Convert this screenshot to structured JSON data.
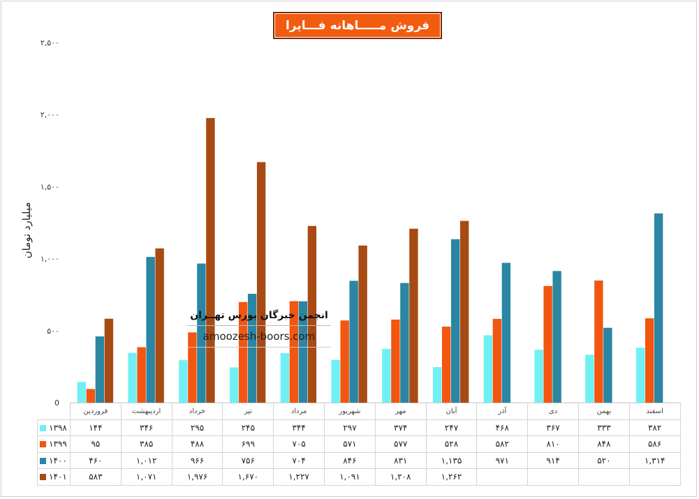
{
  "title": "فروش مـــــاهانه فـــايرا",
  "chart_data": {
    "type": "bar",
    "title": "فروش مـــــاهانه فـــايرا",
    "ylabel": "میلیارد تومان",
    "xlabel": "",
    "ylim": [
      0,
      2500
    ],
    "yticks": [
      0,
      500,
      1000,
      1500,
      2000,
      2500
    ],
    "ytick_labels": [
      "0",
      "۵۰۰",
      "۱,۰۰۰",
      "۱,۵۰۰",
      "۲,۰۰۰",
      "۲,۵۰۰"
    ],
    "grid": false,
    "legend": "table-below",
    "categories": [
      "فروردین",
      "اردیبهشت",
      "خرداد",
      "تیر",
      "مرداد",
      "شهریور",
      "مهر",
      "آبان",
      "آذر",
      "دی",
      "بهمن",
      "اسفند"
    ],
    "series": [
      {
        "name": "۱۳۹۸",
        "color": "#6ff0f4",
        "values": [
          144,
          346,
          295,
          245,
          344,
          297,
          374,
          247,
          468,
          367,
          333,
          382
        ],
        "labels": [
          "۱۴۴",
          "۳۴۶",
          "۲۹۵",
          "۲۴۵",
          "۳۴۴",
          "۲۹۷",
          "۳۷۴",
          "۲۴۷",
          "۴۶۸",
          "۳۶۷",
          "۳۳۳",
          "۳۸۲"
        ]
      },
      {
        "name": "۱۳۹۹",
        "color": "#f25610",
        "values": [
          95,
          385,
          488,
          699,
          705,
          571,
          577,
          528,
          582,
          810,
          848,
          586
        ],
        "labels": [
          "۹۵",
          "۳۸۵",
          "۴۸۸",
          "۶۹۹",
          "۷۰۵",
          "۵۷۱",
          "۵۷۷",
          "۵۲۸",
          "۵۸۲",
          "۸۱۰",
          "۸۴۸",
          "۵۸۶"
        ]
      },
      {
        "name": "۱۴۰۰",
        "color": "#2a86a2",
        "values": [
          460,
          1012,
          966,
          756,
          704,
          846,
          831,
          1135,
          971,
          914,
          520,
          1314
        ],
        "labels": [
          "۴۶۰",
          "۱,۰۱۲",
          "۹۶۶",
          "۷۵۶",
          "۷۰۴",
          "۸۴۶",
          "۸۳۱",
          "۱,۱۳۵",
          "۹۷۱",
          "۹۱۴",
          "۵۲۰",
          "۱,۳۱۴"
        ]
      },
      {
        "name": "۱۴۰۱",
        "color": "#a84a14",
        "values": [
          583,
          1071,
          1976,
          1670,
          1227,
          1091,
          1208,
          1262,
          null,
          null,
          null,
          null
        ],
        "labels": [
          "۵۸۳",
          "۱,۰۷۱",
          "۱,۹۷۶",
          "۱,۶۷۰",
          "۱,۲۲۷",
          "۱,۰۹۱",
          "۱,۲۰۸",
          "۱,۲۶۲",
          "",
          "",
          "",
          ""
        ]
      }
    ]
  },
  "watermark": {
    "persian": "انجمن خبرگان بورس تهــران",
    "url": "amoozesh-boors.com"
  }
}
